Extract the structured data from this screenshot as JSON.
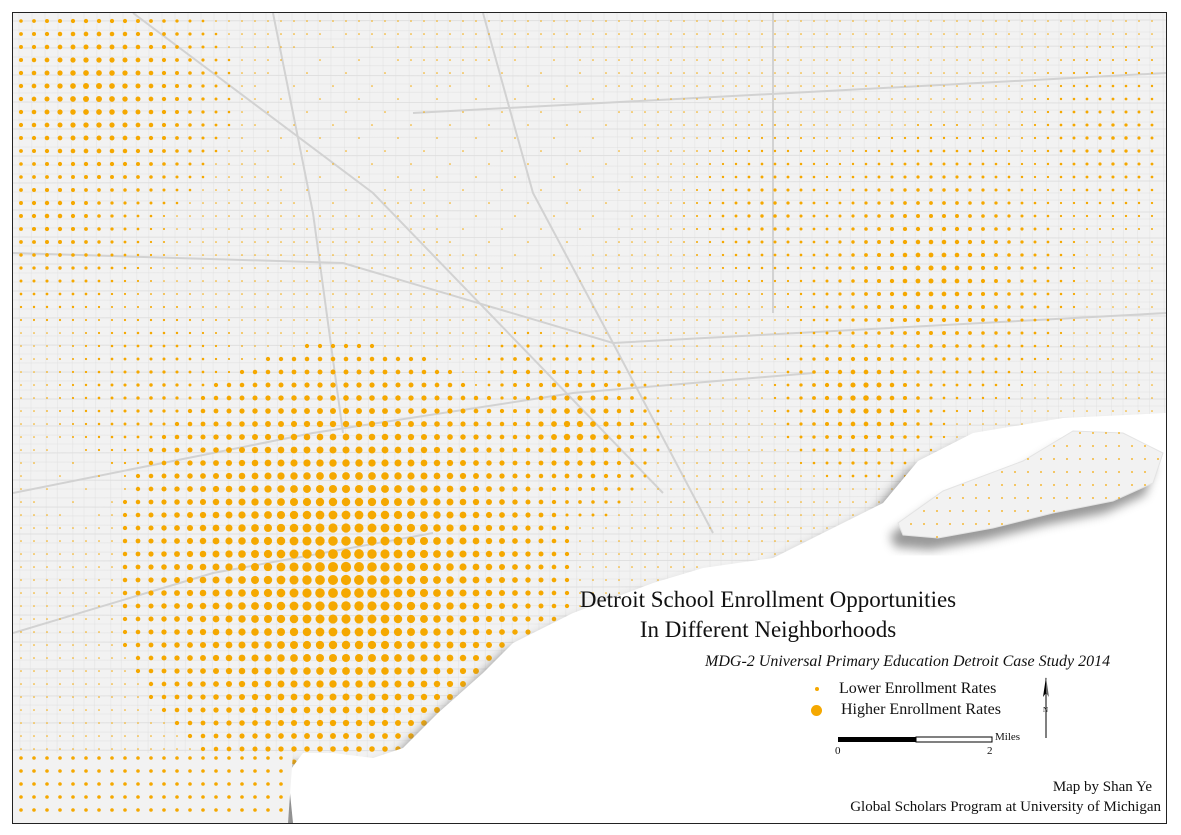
{
  "map": {
    "title_line1": "Detroit School Enrollment Opportunities",
    "title_line2": "In Different Neighborhoods",
    "subtitle": "MDG-2 Universal Primary Education Detroit Case Study 2014",
    "legend": {
      "low_label": "Lower Enrollment Rates",
      "high_label": "Higher Enrollment Rates"
    },
    "scale": {
      "unit": "Miles",
      "start": "0",
      "end": "2"
    },
    "north_label": "N",
    "credit_line1": "Map by Shan Ye",
    "credit_line2": "Global Scholars Program at University of Michigan",
    "colors": {
      "dot": "#f5a800",
      "land": "#f2f2f2",
      "roads": "#dcdcdc",
      "water": "#ffffff",
      "shadow": "#7a7a7a"
    }
  }
}
